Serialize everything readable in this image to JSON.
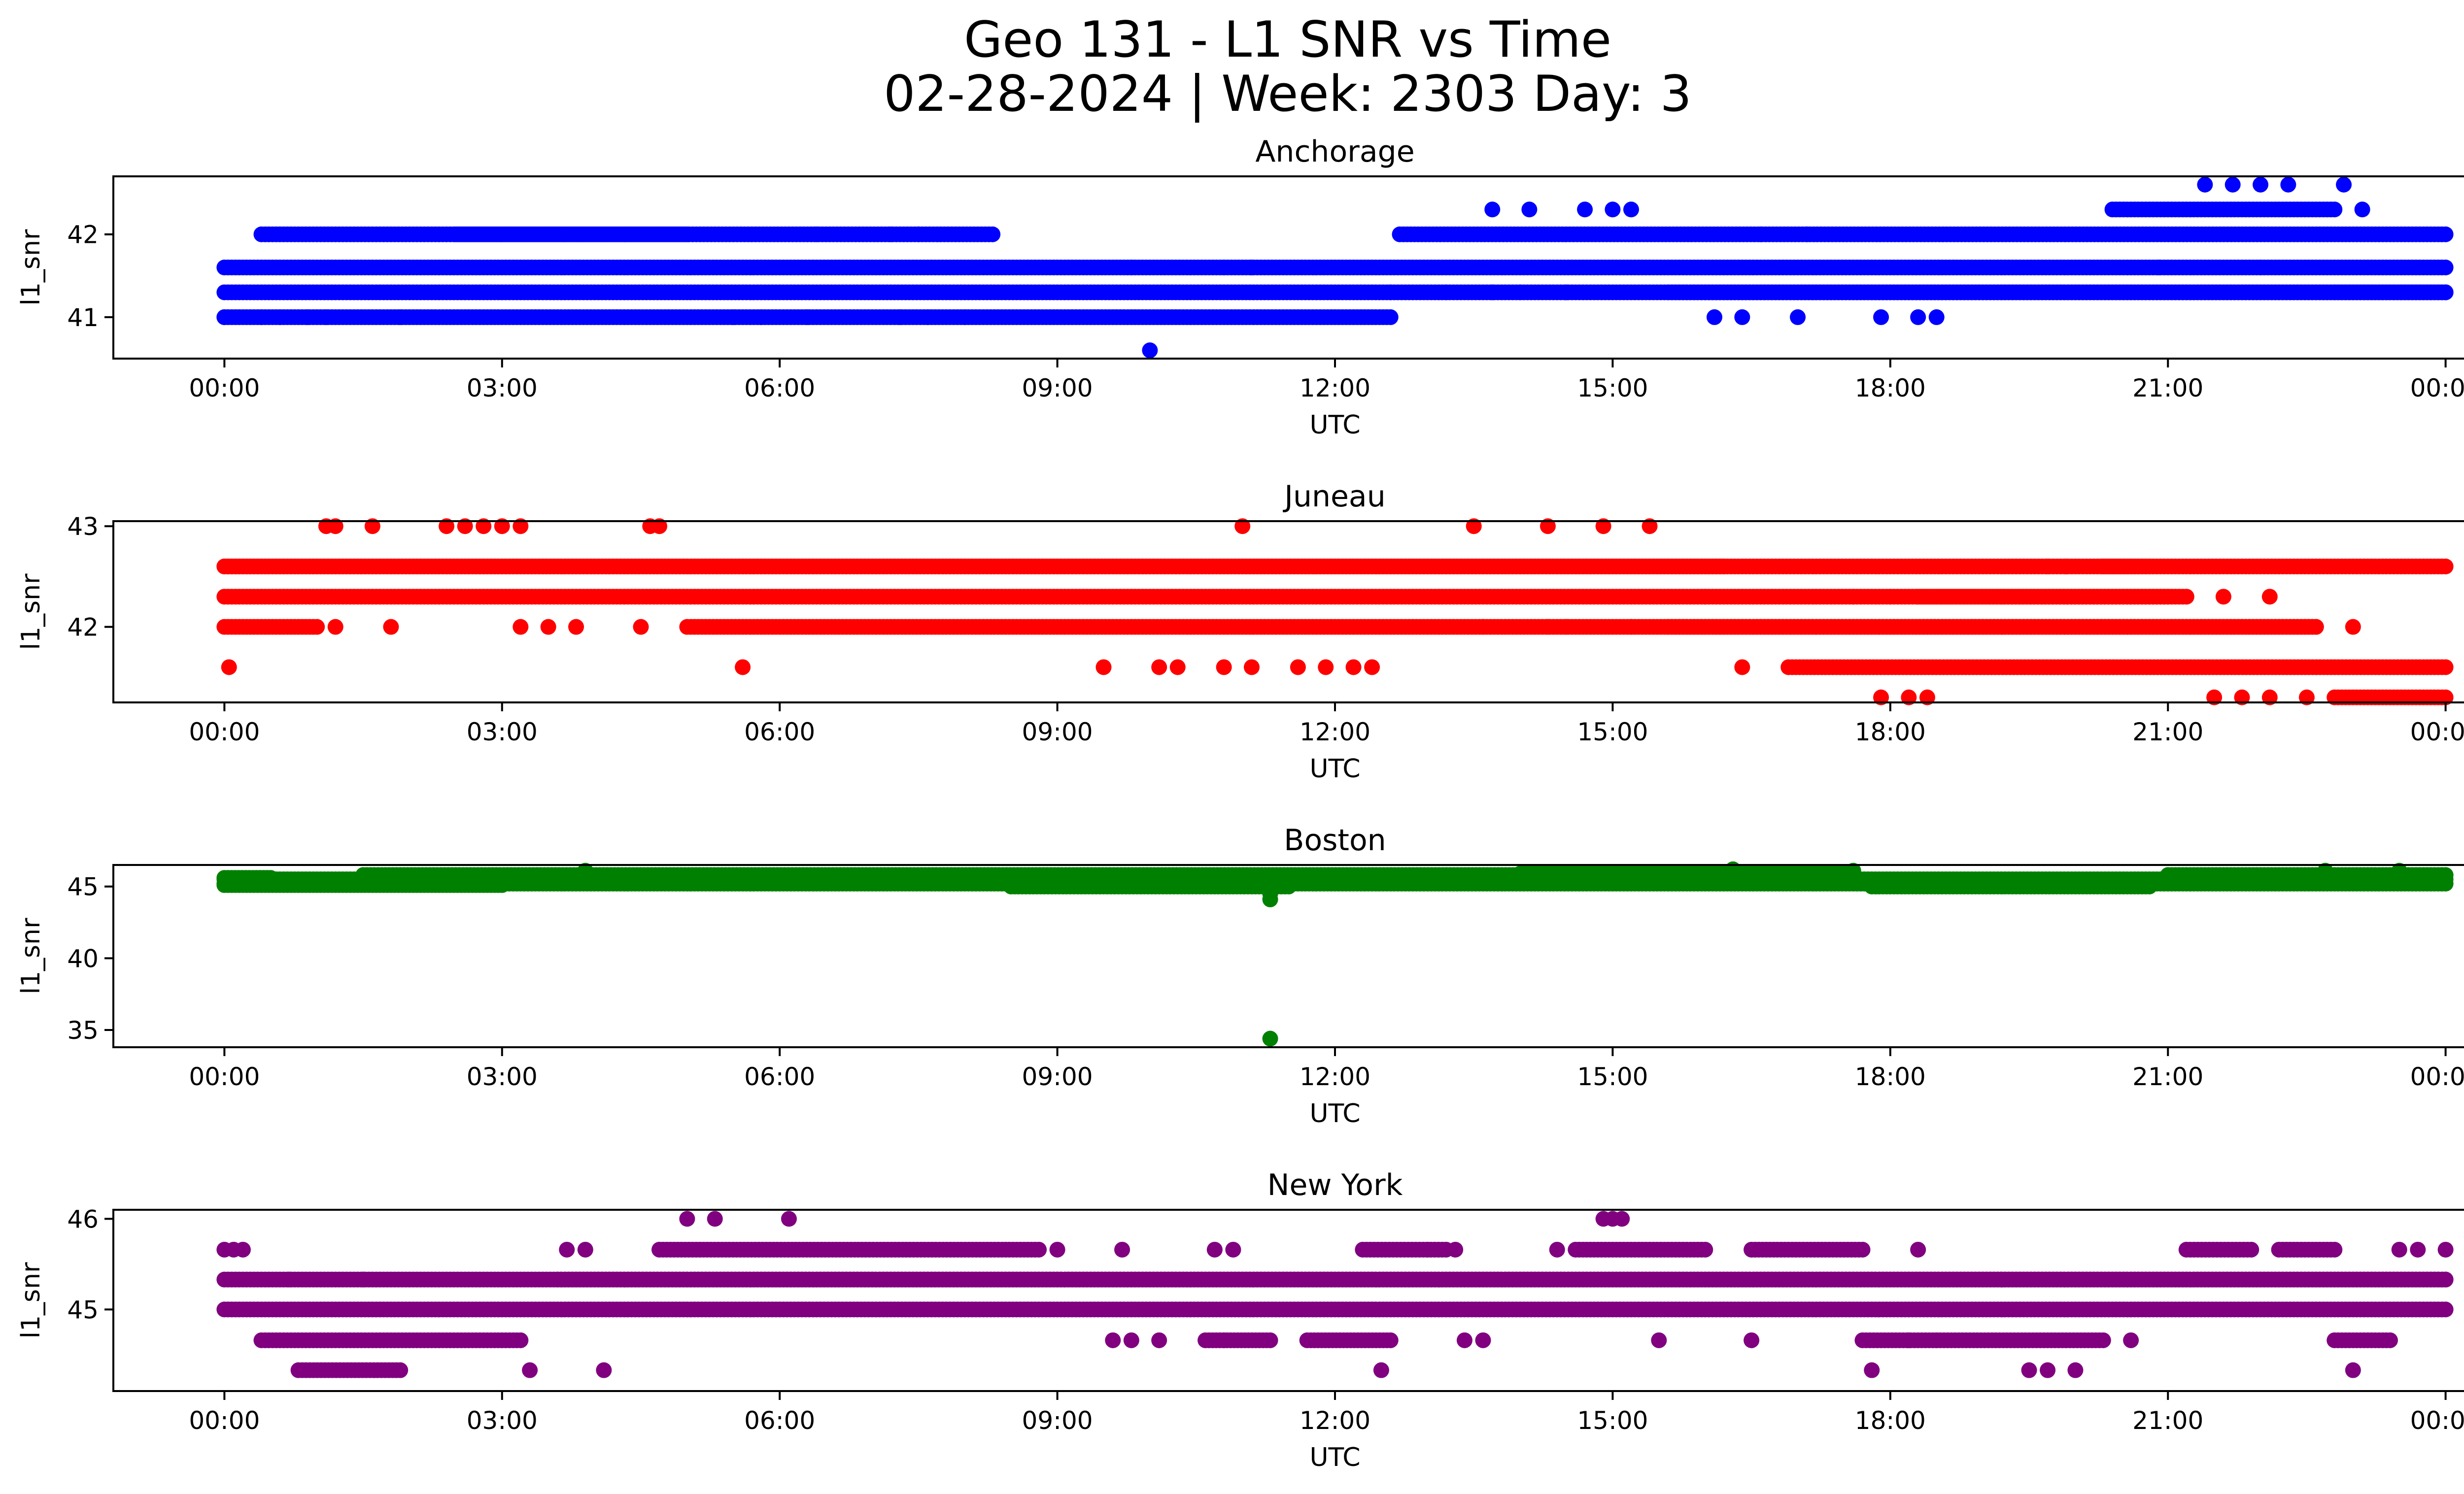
{
  "figure": {
    "title_line1": "Geo 131 - L1 SNR vs Time",
    "title_line2": "02-28-2024 | Week: 2303 Day: 3"
  },
  "chart_data": [
    {
      "type": "scatter",
      "title": "Anchorage",
      "xlabel": "UTC",
      "ylabel": "l1_snr",
      "color": "#0000ff",
      "x_ticks": [
        "00:00",
        "03:00",
        "06:00",
        "09:00",
        "12:00",
        "15:00",
        "18:00",
        "21:00",
        "00:00"
      ],
      "xlim": [
        -1.2,
        25.2
      ],
      "y_ticks": [
        41,
        42
      ],
      "ylim": [
        40.5,
        42.7
      ],
      "series": [
        {
          "segments": [
            [
              [
                0.0,
                24.0,
                41.6
              ],
              [
                0.0,
                24.0,
                41.3
              ],
              [
                0.0,
                12.6,
                41.0
              ],
              [
                15.6,
                24.0,
                41.3
              ],
              [
                22.8,
                24.0,
                41.3
              ]
            ],
            [
              [
                0.4,
                5.0,
                42.0
              ],
              [
                2.5,
                8.3,
                42.0
              ],
              [
                12.7,
                24.0,
                42.0
              ],
              [
                20.4,
                22.8,
                42.3
              ]
            ]
          ],
          "points": [
            [
              0.0,
              41.0
            ],
            [
              0.4,
              41.0
            ],
            [
              0.6,
              41.0
            ],
            [
              0.9,
              41.0
            ],
            [
              1.1,
              41.0
            ],
            [
              1.9,
              41.0
            ],
            [
              5.5,
              41.0
            ],
            [
              5.8,
              41.0
            ],
            [
              6.3,
              41.0
            ],
            [
              7.3,
              41.0
            ],
            [
              7.6,
              41.0
            ],
            [
              8.0,
              41.0
            ],
            [
              10.0,
              40.6
            ],
            [
              12.6,
              41.3
            ],
            [
              13.2,
              41.3
            ],
            [
              13.7,
              41.3
            ],
            [
              14.0,
              41.3
            ],
            [
              14.5,
              41.3
            ],
            [
              13.7,
              42.3
            ],
            [
              14.1,
              42.3
            ],
            [
              14.7,
              42.3
            ],
            [
              15.0,
              42.3
            ],
            [
              15.2,
              42.3
            ],
            [
              16.1,
              41.0
            ],
            [
              16.4,
              41.0
            ],
            [
              17.0,
              41.0
            ],
            [
              17.9,
              41.0
            ],
            [
              18.3,
              41.0
            ],
            [
              18.5,
              41.0
            ],
            [
              21.4,
              42.6
            ],
            [
              21.7,
              42.6
            ],
            [
              22.0,
              42.6
            ],
            [
              22.3,
              42.6
            ],
            [
              22.9,
              42.6
            ],
            [
              23.1,
              42.3
            ],
            [
              16.6,
              42.0
            ],
            [
              17.1,
              42.0
            ],
            [
              20.9,
              41.6
            ],
            [
              22.0,
              41.6
            ],
            [
              6.4,
              42.0
            ],
            [
              7.2,
              42.0
            ],
            [
              7.5,
              42.0
            ],
            [
              10.8,
              41.6
            ],
            [
              11.1,
              41.6
            ],
            [
              9.8,
              41.6
            ]
          ]
        }
      ]
    },
    {
      "type": "scatter",
      "title": "Juneau",
      "xlabel": "UTC",
      "ylabel": "l1_snr",
      "color": "#ff0000",
      "x_ticks": [
        "00:00",
        "03:00",
        "06:00",
        "09:00",
        "12:00",
        "15:00",
        "18:00",
        "21:00",
        "00:00"
      ],
      "xlim": [
        -1.2,
        25.2
      ],
      "y_ticks": [
        42,
        43
      ],
      "ylim": [
        41.25,
        43.05
      ],
      "series": [
        {
          "segments": [
            [
              [
                0.0,
                16.0,
                42.3
              ],
              [
                16.0,
                21.2,
                42.3
              ],
              [
                0.0,
                24.0,
                42.6
              ],
              [
                0.0,
                16.2,
                42.6
              ],
              [
                5.0,
                22.6,
                42.0
              ],
              [
                0.0,
                1.0,
                42.0
              ],
              [
                15.6,
                22.6,
                42.0
              ]
            ],
            [
              [
                16.9,
                24.0,
                41.6
              ],
              [
                22.8,
                24.0,
                41.3
              ],
              [
                18.3,
                21.0,
                42.3
              ],
              [
                20.3,
                20.8,
                42.6
              ],
              [
                11.0,
                16.2,
                42.6
              ]
            ]
          ],
          "points": [
            [
              0.05,
              41.6
            ],
            [
              1.1,
              43.0
            ],
            [
              1.2,
              43.0
            ],
            [
              1.6,
              43.0
            ],
            [
              2.4,
              43.0
            ],
            [
              2.6,
              43.0
            ],
            [
              2.8,
              43.0
            ],
            [
              3.0,
              43.0
            ],
            [
              3.2,
              43.0
            ],
            [
              4.6,
              43.0
            ],
            [
              4.7,
              43.0
            ],
            [
              11.0,
              43.0
            ],
            [
              13.5,
              43.0
            ],
            [
              14.3,
              43.0
            ],
            [
              14.9,
              43.0
            ],
            [
              15.4,
              43.0
            ],
            [
              1.2,
              42.0
            ],
            [
              1.8,
              42.0
            ],
            [
              3.2,
              42.0
            ],
            [
              3.5,
              42.0
            ],
            [
              3.8,
              42.0
            ],
            [
              4.5,
              42.0
            ],
            [
              5.6,
              41.6
            ],
            [
              9.5,
              41.6
            ],
            [
              10.1,
              41.6
            ],
            [
              10.3,
              41.6
            ],
            [
              10.8,
              41.6
            ],
            [
              11.1,
              41.6
            ],
            [
              11.6,
              41.6
            ],
            [
              11.9,
              41.6
            ],
            [
              12.2,
              41.6
            ],
            [
              12.4,
              41.6
            ],
            [
              16.4,
              41.6
            ],
            [
              17.9,
              41.3
            ],
            [
              18.2,
              41.3
            ],
            [
              18.4,
              41.3
            ],
            [
              21.5,
              41.3
            ],
            [
              21.8,
              41.3
            ],
            [
              22.1,
              41.3
            ],
            [
              22.5,
              41.3
            ],
            [
              15.2,
              42.0
            ],
            [
              14.3,
              42.0
            ],
            [
              14.5,
              42.0
            ],
            [
              13.6,
              42.0
            ],
            [
              19.7,
              42.6
            ],
            [
              19.9,
              42.6
            ],
            [
              23.0,
              42.0
            ],
            [
              22.1,
              42.3
            ],
            [
              21.6,
              42.3
            ],
            [
              17.6,
              42.3
            ],
            [
              18.0,
              42.3
            ]
          ]
        }
      ]
    },
    {
      "type": "scatter",
      "title": "Boston",
      "xlabel": "UTC",
      "ylabel": "l1_snr",
      "color": "#008000",
      "x_ticks": [
        "00:00",
        "03:00",
        "06:00",
        "09:00",
        "12:00",
        "15:00",
        "18:00",
        "21:00",
        "00:00"
      ],
      "xlim": [
        -1.2,
        25.2
      ],
      "y_ticks": [
        35,
        40,
        45
      ],
      "ylim": [
        33.8,
        46.5
      ],
      "series": [
        {
          "segments": [
            [
              [
                0.0,
                24.0,
                45.5
              ],
              [
                0.0,
                24.0,
                45.2
              ],
              [
                1.5,
                16.8,
                45.8
              ],
              [
                14.0,
                17.6,
                45.9
              ],
              [
                21.0,
                24.0,
                45.8
              ]
            ],
            [
              [
                0.0,
                3.0,
                45.1
              ],
              [
                8.5,
                11.5,
                45.0
              ],
              [
                17.8,
                20.8,
                45.0
              ],
              [
                0.0,
                0.5,
                45.6
              ],
              [
                3.0,
                9.0,
                45.7
              ]
            ]
          ],
          "points": [
            [
              11.3,
              44.1
            ],
            [
              11.3,
              44.5
            ],
            [
              11.3,
              34.4
            ],
            [
              3.9,
              46.1
            ],
            [
              16.3,
              46.2
            ],
            [
              17.6,
              46.1
            ],
            [
              22.7,
              46.1
            ],
            [
              23.5,
              46.1
            ]
          ]
        }
      ]
    },
    {
      "type": "scatter",
      "title": "New York",
      "xlabel": "UTC",
      "ylabel": "l1_snr",
      "color": "#800080",
      "x_ticks": [
        "00:00",
        "03:00",
        "06:00",
        "09:00",
        "12:00",
        "15:00",
        "18:00",
        "21:00",
        "00:00"
      ],
      "xlim": [
        -1.2,
        25.2
      ],
      "y_ticks": [
        45,
        46
      ],
      "ylim": [
        44.1,
        46.1
      ],
      "series": [
        {
          "segments": [
            [
              [
                0.0,
                24.0,
                45.0
              ],
              [
                0.0,
                24.0,
                45.33
              ],
              [
                3.6,
                24.0,
                45.33
              ],
              [
                4.7,
                8.8,
                45.66
              ],
              [
                14.6,
                16.0,
                45.66
              ],
              [
                16.5,
                17.7,
                45.66
              ],
              [
                21.2,
                21.9,
                45.66
              ],
              [
                22.2,
                22.8,
                45.66
              ]
            ],
            [
              [
                0.4,
                3.2,
                44.66
              ],
              [
                17.7,
                20.3,
                44.66
              ],
              [
                0.8,
                1.9,
                44.33
              ],
              [
                12.3,
                13.2,
                45.66
              ],
              [
                10.6,
                11.3,
                44.66
              ],
              [
                11.7,
                12.6,
                44.66
              ],
              [
                22.8,
                23.4,
                44.66
              ]
            ]
          ],
          "points": [
            [
              0.0,
              45.66
            ],
            [
              0.1,
              45.66
            ],
            [
              0.2,
              45.66
            ],
            [
              0.7,
              45.33
            ],
            [
              1.5,
              45.33
            ],
            [
              3.3,
              44.33
            ],
            [
              4.1,
              44.33
            ],
            [
              3.7,
              45.66
            ],
            [
              3.9,
              45.66
            ],
            [
              5.0,
              46.0
            ],
            [
              5.3,
              46.0
            ],
            [
              6.1,
              46.0
            ],
            [
              14.9,
              46.0
            ],
            [
              15.0,
              46.0
            ],
            [
              15.1,
              46.0
            ],
            [
              9.6,
              44.66
            ],
            [
              9.8,
              44.66
            ],
            [
              10.1,
              44.66
            ],
            [
              10.8,
              44.66
            ],
            [
              12.5,
              44.33
            ],
            [
              13.4,
              44.66
            ],
            [
              13.6,
              44.66
            ],
            [
              15.5,
              44.66
            ],
            [
              16.5,
              44.66
            ],
            [
              17.8,
              44.33
            ],
            [
              18.2,
              44.66
            ],
            [
              18.5,
              44.66
            ],
            [
              19.5,
              44.33
            ],
            [
              19.7,
              44.33
            ],
            [
              20.0,
              44.33
            ],
            [
              20.6,
              44.66
            ],
            [
              23.0,
              44.33
            ],
            [
              18.3,
              45.66
            ],
            [
              19.2,
              45.33
            ],
            [
              23.5,
              45.66
            ],
            [
              23.7,
              45.66
            ],
            [
              24.0,
              45.66
            ],
            [
              9.0,
              45.66
            ],
            [
              9.7,
              45.66
            ],
            [
              10.7,
              45.66
            ],
            [
              10.9,
              45.66
            ],
            [
              13.0,
              45.66
            ],
            [
              13.3,
              45.66
            ],
            [
              14.4,
              45.66
            ]
          ]
        }
      ]
    }
  ]
}
